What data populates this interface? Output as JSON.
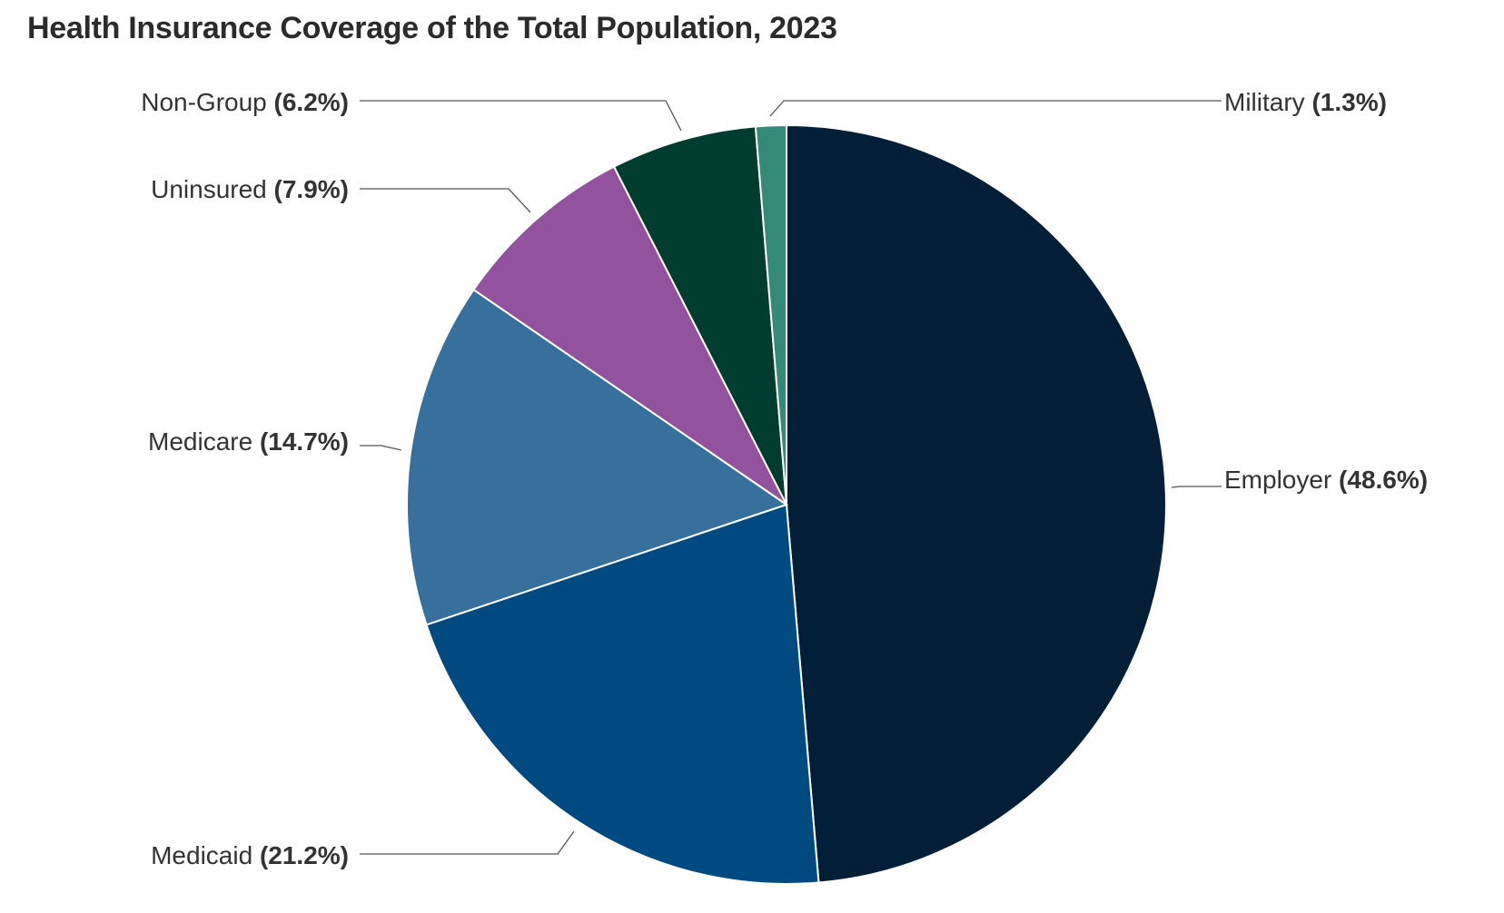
{
  "chart_data": {
    "type": "pie",
    "title": "Health Insurance Coverage of the Total Population, 2023",
    "slices": [
      {
        "label": "Employer",
        "value": 48.6,
        "value_label": "(48.6%)",
        "color": "#021f37"
      },
      {
        "label": "Medicaid",
        "value": 21.2,
        "value_label": "(21.2%)",
        "color": "#004a82"
      },
      {
        "label": "Medicare",
        "value": 14.7,
        "value_label": "(14.7%)",
        "color": "#37709d"
      },
      {
        "label": "Uninsured",
        "value": 7.9,
        "value_label": "(7.9%)",
        "color": "#93529d"
      },
      {
        "label": "Non-Group",
        "value": 6.2,
        "value_label": "(6.2%)",
        "color": "#003c30"
      },
      {
        "label": "Military",
        "value": 1.3,
        "value_label": "(1.3%)",
        "color": "#348978"
      }
    ]
  }
}
